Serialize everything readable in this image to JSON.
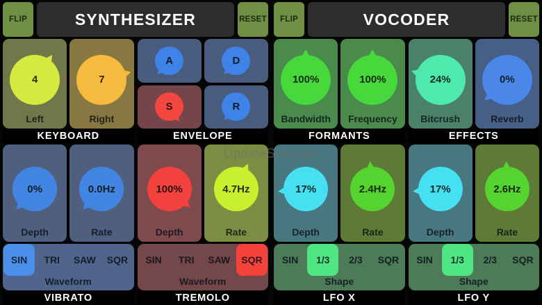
{
  "watermark": "UpdateStar.com",
  "colors": {
    "background": "#060606",
    "header_button": "#6f9044",
    "header_bar": "#2d2d2d",
    "section_title_bar": "#000000"
  },
  "synth": {
    "flip": "FLIP",
    "title": "SYNTHESIZER",
    "reset": "RESET",
    "keyboard": {
      "title": "KEYBOARD",
      "knobs": [
        {
          "value": "4",
          "label": "Left",
          "knob_color": "#d3ea3f",
          "cell_color": "#72774a",
          "angle": 55
        },
        {
          "value": "7",
          "label": "Right",
          "knob_color": "#f6ba3e",
          "cell_color": "#877740",
          "angle": 15
        }
      ]
    },
    "envelope": {
      "title": "ENVELOPE",
      "knobs": [
        {
          "value": "A",
          "knob_color": "#3f83e8",
          "cell_color": "#4a5c7d",
          "angle": 230
        },
        {
          "value": "D",
          "knob_color": "#3f83e8",
          "cell_color": "#4a5c7d",
          "angle": 230
        },
        {
          "value": "S",
          "knob_color": "#f2473f",
          "cell_color": "#74464b",
          "angle": 305
        },
        {
          "value": "R",
          "knob_color": "#3f83e8",
          "cell_color": "#4a5c7d",
          "angle": 230
        }
      ]
    },
    "vibrato": {
      "title": "VIBRATO",
      "knobs": [
        {
          "value": "0%",
          "label": "Depth",
          "knob_color": "#4285e2",
          "cell_color": "#4e5f80",
          "angle": 228
        },
        {
          "value": "0.0Hz",
          "label": "Rate",
          "knob_color": "#4285e2",
          "cell_color": "#4e5f80",
          "angle": 228
        }
      ],
      "selector": {
        "label": "Waveform",
        "options": [
          "SIN",
          "TRI",
          "SAW",
          "SQR"
        ],
        "selected": "SIN",
        "bar_color": "#51648c",
        "chip_color": "#4a8fea"
      }
    },
    "tremolo": {
      "title": "TREMOLO",
      "knobs": [
        {
          "value": "100%",
          "label": "Depth",
          "knob_color": "#f3413e",
          "cell_color": "#7d4a4d",
          "angle": 318
        },
        {
          "value": "4.7Hz",
          "label": "Rate",
          "knob_color": "#c8f02f",
          "cell_color": "#7d8c43",
          "angle": 65
        }
      ],
      "selector": {
        "label": "Waveform",
        "options": [
          "SIN",
          "TRI",
          "SAW",
          "SQR"
        ],
        "selected": "SQR",
        "bar_color": "#74474b",
        "chip_color": "#f5433c"
      }
    }
  },
  "vocoder": {
    "flip": "FLIP",
    "title": "VOCODER",
    "reset": "RESET",
    "formants": {
      "title": "FORMANTS",
      "knobs": [
        {
          "value": "100%",
          "label": "Bandwidth",
          "knob_color": "#47d83c",
          "cell_color": "#4a8a4d",
          "angle": 90
        },
        {
          "value": "100%",
          "label": "Frequency",
          "knob_color": "#47d83c",
          "cell_color": "#4a8a4d",
          "angle": 90
        }
      ]
    },
    "effects": {
      "title": "EFFECTS",
      "knobs": [
        {
          "value": "24%",
          "label": "Bitcrush",
          "knob_color": "#4ee9ad",
          "cell_color": "#4b8069",
          "angle": 163
        },
        {
          "value": "0%",
          "label": "Reverb",
          "knob_color": "#4b87e8",
          "cell_color": "#475e85",
          "angle": 222
        }
      ]
    },
    "lfox": {
      "title": "LFO X",
      "knobs": [
        {
          "value": "17%",
          "label": "Depth",
          "knob_color": "#45e0f2",
          "cell_color": "#48777f",
          "angle": 185
        },
        {
          "value": "2.4Hz",
          "label": "Rate",
          "knob_color": "#55d42f",
          "cell_color": "#5d7a36",
          "angle": 95
        }
      ],
      "selector": {
        "label": "Shape",
        "options": [
          "SIN",
          "1/3",
          "2/3",
          "SQR"
        ],
        "selected": "1/3",
        "bar_color": "#4d7a57",
        "chip_color": "#4fe584"
      }
    },
    "lfoy": {
      "title": "LFO Y",
      "knobs": [
        {
          "value": "17%",
          "label": "Depth",
          "knob_color": "#45e0f2",
          "cell_color": "#48777f",
          "angle": 185
        },
        {
          "value": "2.6Hz",
          "label": "Rate",
          "knob_color": "#55d42f",
          "cell_color": "#5d7a36",
          "angle": 92
        }
      ],
      "selector": {
        "label": "Shape",
        "options": [
          "SIN",
          "1/3",
          "2/3",
          "SQR"
        ],
        "selected": "1/3",
        "bar_color": "#4d7a57",
        "chip_color": "#4fe584"
      }
    }
  }
}
